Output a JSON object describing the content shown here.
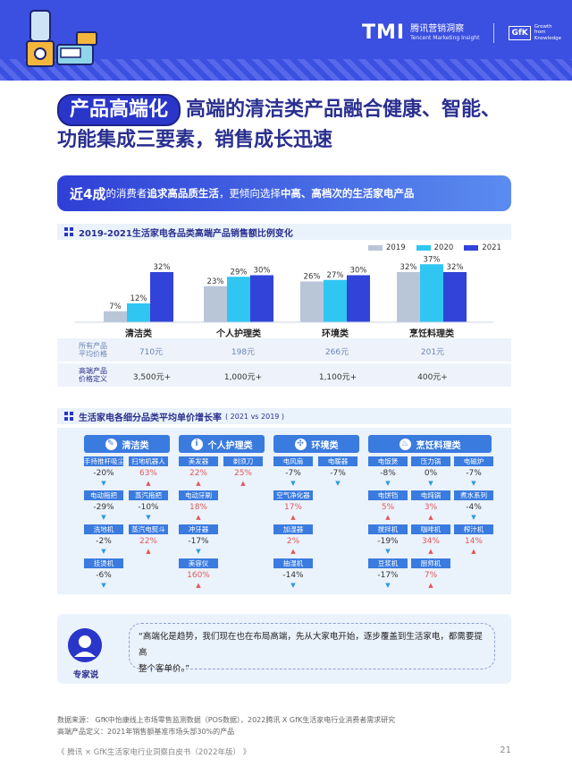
{
  "header": {
    "logo_main": "TMI",
    "logo_cn": "腾讯营销洞察",
    "logo_en": "Tencent Marketing Insight",
    "gfk_box": "GfK",
    "gfk_tag_lines": [
      "Growth",
      "from",
      "Knowledge"
    ]
  },
  "title": {
    "pill": "产品高端化",
    "line1": "高端的清洁类产品融合健康、智能、",
    "line2": "功能集成三要素，销售成长迅速"
  },
  "banner": {
    "strong": "近4成",
    "text1": "的消费者",
    "bold1": "追求高品质生活",
    "text2": "，更倾向选择",
    "bold2": "中高、高档次的生活家电产品"
  },
  "section1": {
    "title": "2019-2021生活家电各品类高端产品销售额比例变化"
  },
  "chart_data": {
    "type": "bar",
    "categories": [
      "清洁类",
      "个人护理类",
      "环境类",
      "烹饪料理类"
    ],
    "series": [
      {
        "name": "2019",
        "values": [
          7,
          23,
          26,
          32
        ],
        "color": "#b9c6d8"
      },
      {
        "name": "2020",
        "values": [
          12,
          29,
          27,
          37
        ],
        "color": "#2fc6f2"
      },
      {
        "name": "2021",
        "values": [
          32,
          30,
          30,
          32
        ],
        "color": "#3143d8"
      }
    ],
    "ylim": [
      0,
      40
    ],
    "grid": false,
    "legend": "top-right"
  },
  "table": {
    "row1_label": [
      "所有产品",
      "平均价格"
    ],
    "row1": [
      "710元",
      "198元",
      "266元",
      "201元"
    ],
    "row2_label": [
      "高端产品",
      "价格定义"
    ],
    "row2": [
      "3,500元+",
      "1,000元+",
      "1,100元+",
      "400元+"
    ]
  },
  "section2": {
    "title": "生活家电各细分品类平均单价增长率",
    "sub": "( 2021 vs 2019 )"
  },
  "groups": [
    {
      "name": "清洁类",
      "icon": "brush-icon",
      "items": [
        {
          "label": "手持推杆吸尘器",
          "value": "-20%",
          "dir": "down"
        },
        {
          "label": "扫地机器人",
          "value": "63%",
          "dir": "up"
        },
        {
          "label": "电动拖把",
          "value": "-29%",
          "dir": "down"
        },
        {
          "label": "蒸汽拖把",
          "value": "-10%",
          "dir": "down"
        },
        {
          "label": "洗地机",
          "value": "-2%",
          "dir": "down"
        },
        {
          "label": "蒸汽电熨斗",
          "value": "22%",
          "dir": "up"
        },
        {
          "label": "挂烫机",
          "value": "-6%",
          "dir": "down"
        }
      ]
    },
    {
      "name": "个人护理类",
      "icon": "info-icon",
      "items": [
        {
          "label": "美发器",
          "value": "22%",
          "dir": "up"
        },
        {
          "label": "剃须刀",
          "value": "25%",
          "dir": "up"
        },
        {
          "label": "电动牙刷",
          "value": "18%",
          "dir": "up"
        },
        {
          "label": "冲牙器",
          "value": "-17%",
          "dir": "down"
        },
        {
          "label": "美容仪",
          "value": "160%",
          "dir": "up"
        }
      ]
    },
    {
      "name": "环境类",
      "icon": "fan-icon",
      "items": [
        {
          "label": "电风扇",
          "value": "-7%",
          "dir": "down"
        },
        {
          "label": "电暖器",
          "value": "-7%",
          "dir": "down"
        },
        {
          "label": "空气净化器",
          "value": "17%",
          "dir": "up"
        },
        {
          "label": "加湿器",
          "value": "2%",
          "dir": "up"
        },
        {
          "label": "抽湿机",
          "value": "-14%",
          "dir": "down"
        }
      ]
    },
    {
      "name": "烹饪料理类",
      "icon": "pot-icon",
      "items": [
        {
          "label": "电饭煲",
          "value": "-8%",
          "dir": "down"
        },
        {
          "label": "压力锅",
          "value": "0%",
          "dir": "down"
        },
        {
          "label": "电磁炉",
          "value": "-7%",
          "dir": "down"
        },
        {
          "label": "电饼铛",
          "value": "5%",
          "dir": "up"
        },
        {
          "label": "电炖锅",
          "value": "3%",
          "dir": "up"
        },
        {
          "label": "煮水系列",
          "value": "-4%",
          "dir": "down"
        },
        {
          "label": "搅拌机",
          "value": "-19%",
          "dir": "down"
        },
        {
          "label": "咖啡机",
          "value": "34%",
          "dir": "up"
        },
        {
          "label": "榨汁机",
          "value": "14%",
          "dir": "up"
        },
        {
          "label": "豆浆机",
          "value": "-17%",
          "dir": "down"
        },
        {
          "label": "厨师机",
          "value": "7%",
          "dir": "up"
        }
      ]
    }
  ],
  "expert": {
    "label": "专家说",
    "quote1": "“高端化是趋势，我们现在也在布局高端，先从大家电开始，逐步覆盖到生活家电，都需要提高",
    "quote2": "整个客单价。”"
  },
  "source": {
    "line1": "数据来源： GfK中怡康线上市场零售监测数据（POS数据），2022腾讯 X GfK生活家电行业消费者需求研究",
    "line2": "高端产品定义：2021年销售额基准市场头部30%的产品"
  },
  "footer": {
    "text": "《 腾讯 × GfK生活家电行业洞察白皮书（2022年版） 》",
    "page": "21"
  }
}
